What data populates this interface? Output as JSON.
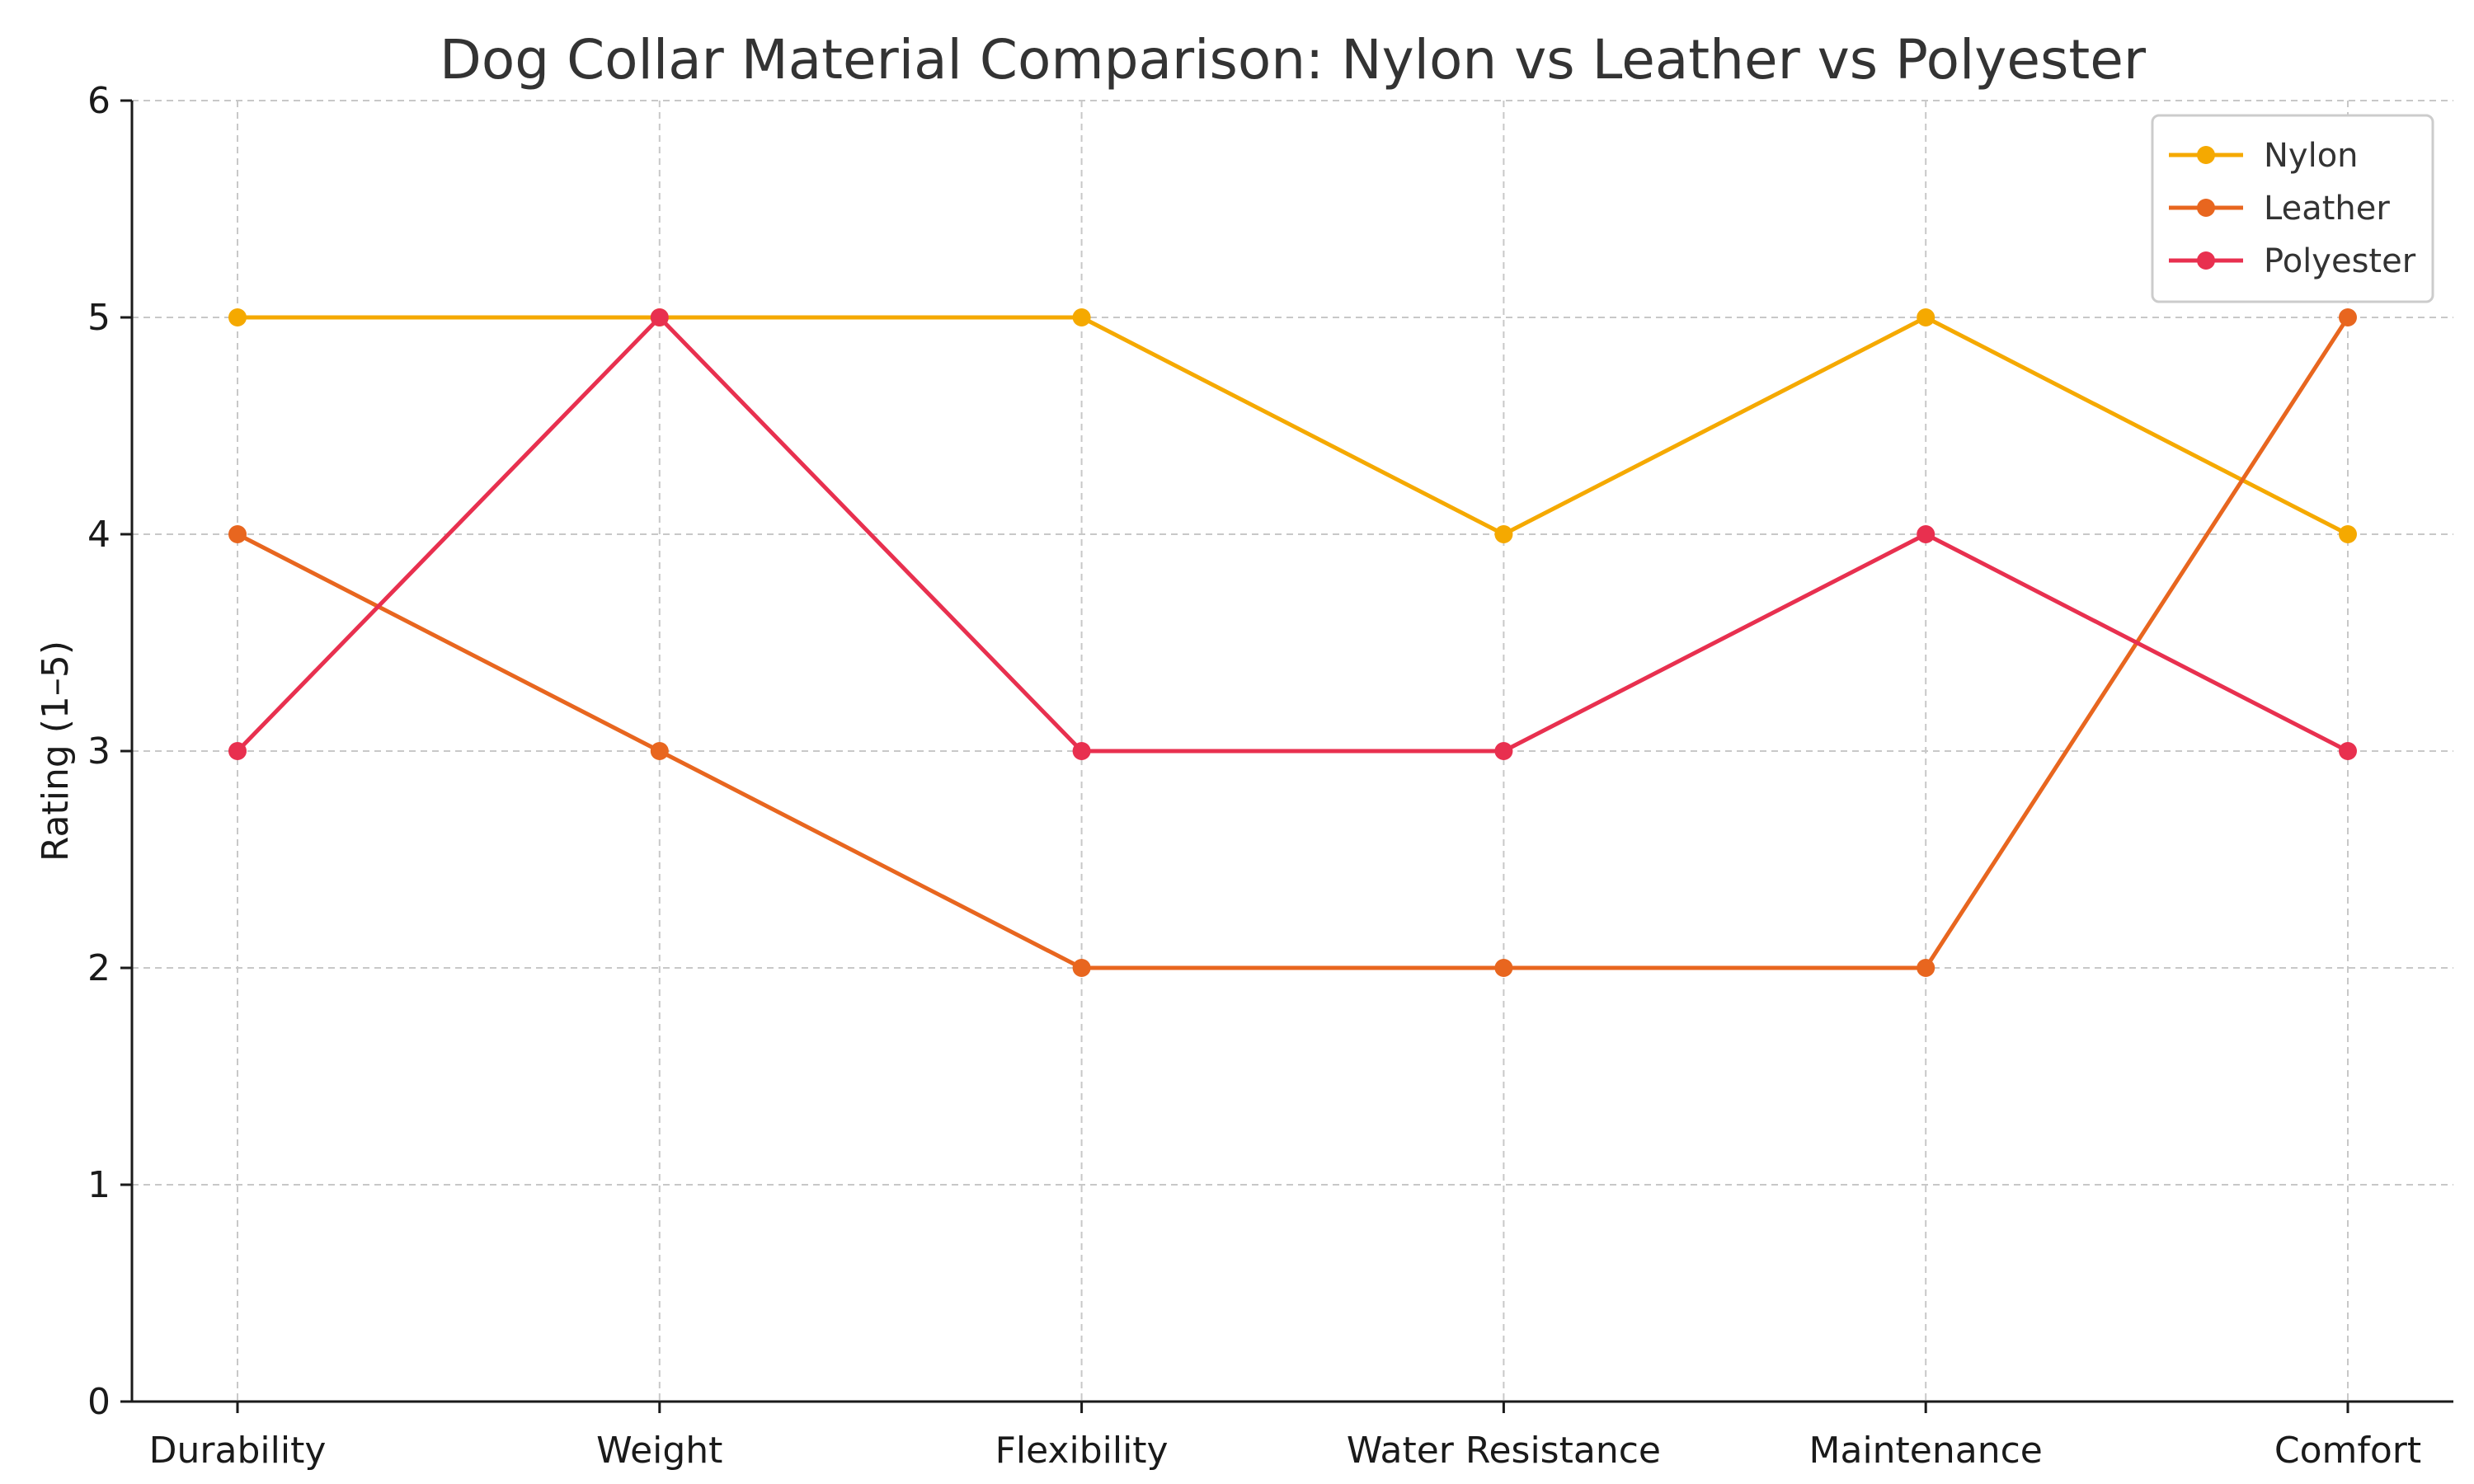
{
  "chart_data": {
    "type": "line",
    "title": "Dog Collar Material Comparison: Nylon vs Leather vs Polyester",
    "xlabel": "",
    "ylabel": "Rating (1–5)",
    "categories": [
      "Durability",
      "Weight",
      "Flexibility",
      "Water Resistance",
      "Maintenance",
      "Comfort"
    ],
    "ylim": [
      0,
      6
    ],
    "yticks": [
      0,
      1,
      2,
      3,
      4,
      5,
      6
    ],
    "grid": true,
    "legend_position": "top-right",
    "series": [
      {
        "name": "Nylon",
        "color": "#F5A900",
        "values": [
          5,
          5,
          5,
          4,
          5,
          4
        ]
      },
      {
        "name": "Leather",
        "color": "#E8661F",
        "values": [
          4,
          3,
          2,
          2,
          2,
          5
        ]
      },
      {
        "name": "Polyester",
        "color": "#E8304F",
        "values": [
          3,
          5,
          3,
          3,
          4,
          3
        ]
      }
    ]
  }
}
